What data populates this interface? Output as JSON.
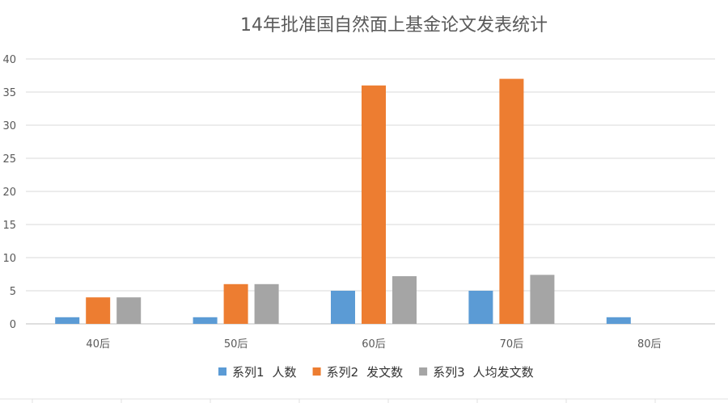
{
  "chart_data": {
    "type": "bar",
    "title": "14年批准国自然面上基金论文发表统计",
    "categories": [
      "40后",
      "50后",
      "60后",
      "70后",
      "80后"
    ],
    "series": [
      {
        "name": "系列1",
        "label": "人数",
        "color": "#5B9BD5",
        "values": [
          1,
          1,
          5,
          5,
          1
        ]
      },
      {
        "name": "系列2",
        "label": "发文数",
        "color": "#ED7D31",
        "values": [
          4,
          6,
          36,
          37,
          0
        ]
      },
      {
        "name": "系列3",
        "label": "人均发文数",
        "color": "#A5A5A5",
        "values": [
          4,
          6,
          7.2,
          7.4,
          0
        ]
      }
    ],
    "ylim": [
      0,
      40
    ],
    "yticks": [
      0,
      5,
      10,
      15,
      20,
      25,
      30,
      35,
      40
    ],
    "grid": true,
    "legend_position": "bottom"
  }
}
